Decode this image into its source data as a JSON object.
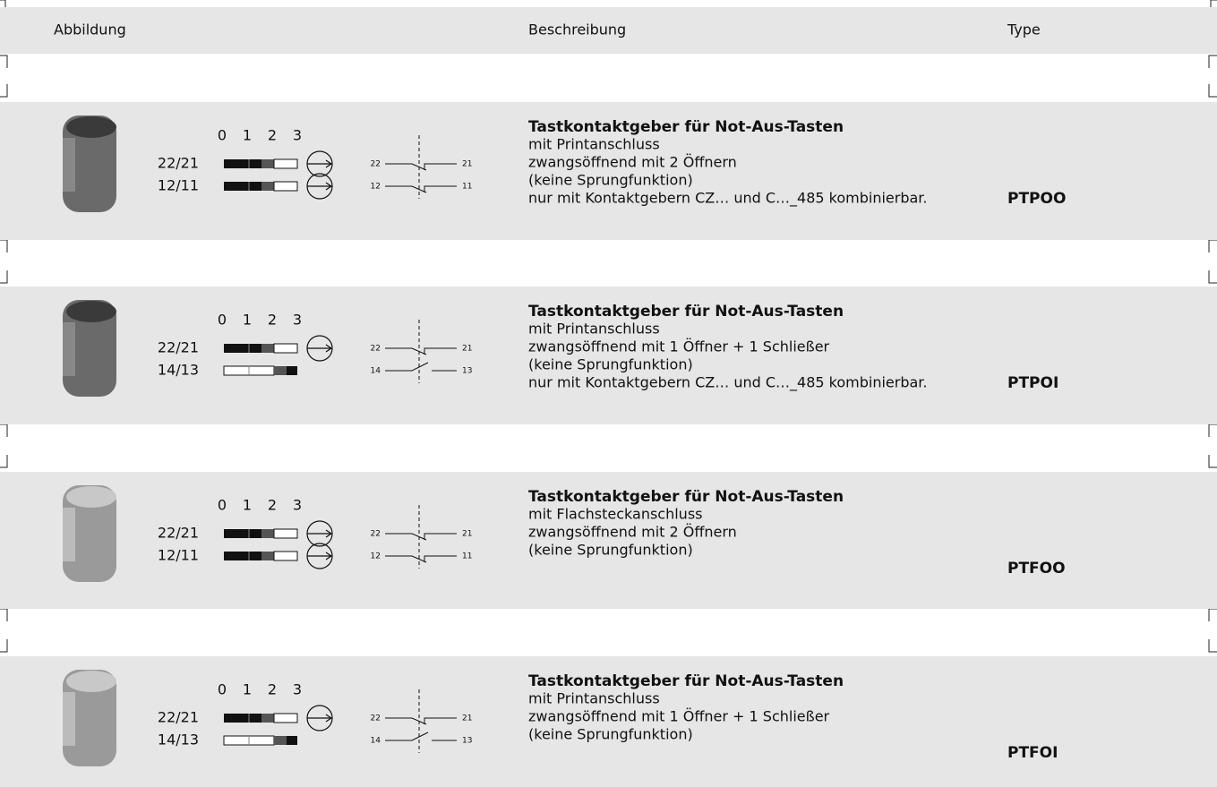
{
  "header": {
    "columns": [
      "Abbildung",
      "Beschreibung",
      "Type"
    ]
  },
  "rows": [
    {
      "positions": [
        0,
        1,
        2,
        3
      ],
      "contacts": [
        "22/21",
        "12/11"
      ],
      "terminals": [
        [
          "22",
          "21"
        ],
        [
          "12",
          "11"
        ]
      ],
      "title": "Tastkontaktgeber für Not-Aus-Tasten",
      "lines": [
        "mit Printanschluss",
        "zwangsöffnend mit 2 Öffnern",
        "(keine Sprungfunktion)",
        "nur mit Kontaktgebern CZ… und C…_485 kombinierbar."
      ],
      "type": "PTPOO"
    },
    {
      "positions": [
        0,
        1,
        2,
        3
      ],
      "contacts": [
        "22/21",
        "14/13"
      ],
      "terminals": [
        [
          "22",
          "21"
        ],
        [
          "14",
          "13"
        ]
      ],
      "title": "Tastkontaktgeber für Not-Aus-Tasten",
      "lines": [
        "mit Printanschluss",
        "zwangsöffnend mit 1 Öffner + 1 Schließer",
        "(keine Sprungfunktion)",
        "nur mit Kontaktgebern CZ… und C…_485 kombinierbar."
      ],
      "type": "PTPOI"
    },
    {
      "positions": [
        0,
        1,
        2,
        3
      ],
      "contacts": [
        "22/21",
        "12/11"
      ],
      "terminals": [
        [
          "22",
          "21"
        ],
        [
          "12",
          "11"
        ]
      ],
      "title": "Tastkontaktgeber für Not-Aus-Tasten",
      "lines": [
        "mit Flachsteckanschluss",
        "zwangsöffnend mit 2 Öffnern",
        "(keine Sprungfunktion)"
      ],
      "type": "PTFOO"
    },
    {
      "positions": [
        0,
        1,
        2,
        3
      ],
      "contacts": [
        "22/21",
        "14/13"
      ],
      "terminals": [
        [
          "22",
          "21"
        ],
        [
          "14",
          "13"
        ]
      ],
      "title": "Tastkontaktgeber für Not-Aus-Tasten",
      "lines": [
        "mit Printanschluss",
        "zwangsöffnend mit 1 Öffner + 1 Schließer",
        "(keine Sprungfunktion)"
      ],
      "type": "PTFOI"
    }
  ]
}
